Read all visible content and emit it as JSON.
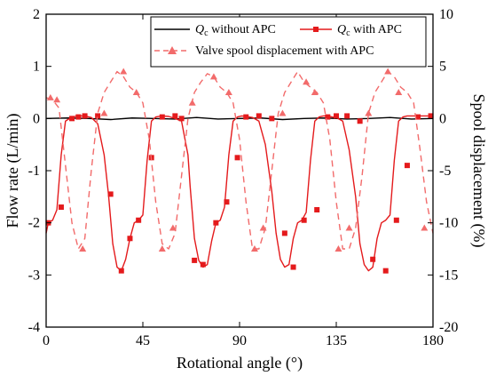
{
  "chart_data": {
    "type": "line",
    "title": "",
    "xlabel": "Rotational angle (°)",
    "ylabel_left": "Flow rate (L/min)",
    "ylabel_right": "Spool displacement (%)",
    "xlim": [
      0,
      180
    ],
    "ylim_left": [
      -4,
      2
    ],
    "ylim_right": [
      -20,
      10
    ],
    "x_ticks": [
      0,
      45,
      90,
      135,
      180
    ],
    "y_left_ticks": [
      -4,
      -3,
      -2,
      -1,
      0,
      1,
      2
    ],
    "y_right_ticks": [
      -20,
      -15,
      -10,
      -5,
      0,
      5,
      10
    ],
    "grid": false,
    "legend_position": "top-right",
    "series": [
      {
        "name": "Q_c without APC",
        "legend_main": "Q",
        "legend_sub": "c",
        "legend_rest": " without APC",
        "axis": "left",
        "color": "#000000",
        "style": "solid",
        "marker": "none",
        "x": [
          0,
          10,
          20,
          30,
          40,
          50,
          60,
          70,
          80,
          90,
          100,
          110,
          120,
          130,
          140,
          150,
          160,
          170,
          180
        ],
        "y": [
          0,
          0.01,
          0.0,
          -0.02,
          0.01,
          0.0,
          -0.01,
          0.02,
          -0.01,
          0.0,
          0.01,
          -0.02,
          0.0,
          0.01,
          -0.01,
          0.0,
          0.02,
          -0.01,
          0.0
        ]
      },
      {
        "name": "Q_c with APC",
        "legend_main": "Q",
        "legend_sub": "c",
        "legend_rest": " with APC",
        "axis": "left",
        "color": "#e41a1c",
        "style": "solid",
        "marker": "square",
        "x": [
          0,
          1,
          3,
          5,
          7,
          9,
          12,
          15,
          18,
          21,
          24,
          27,
          29,
          31,
          33,
          35,
          37,
          39,
          41,
          43,
          45,
          47,
          49,
          51,
          54,
          57,
          60,
          63,
          66,
          67,
          69,
          71,
          73,
          75,
          77,
          79,
          81,
          83,
          85,
          87,
          89,
          91,
          93,
          96,
          99,
          102,
          105,
          107,
          109,
          111,
          113,
          115,
          117,
          119,
          121,
          123,
          125,
          127,
          129,
          131,
          133,
          135,
          138,
          141,
          144,
          146,
          148,
          150,
          152,
          154,
          156,
          158,
          160,
          162,
          164,
          166,
          168,
          170,
          173,
          176,
          180
        ],
        "y": [
          -2.2,
          -2.0,
          -1.95,
          -1.75,
          -0.7,
          -0.05,
          0.03,
          0.05,
          0.05,
          0.02,
          -0.1,
          -0.7,
          -1.45,
          -2.4,
          -2.85,
          -2.92,
          -2.7,
          -2.3,
          -2.0,
          -1.95,
          -1.85,
          -0.8,
          -0.05,
          0.03,
          0.05,
          0.04,
          0.0,
          -0.05,
          -0.7,
          -1.3,
          -2.3,
          -2.72,
          -2.85,
          -2.8,
          -2.35,
          -2.0,
          -1.95,
          -1.7,
          -0.7,
          -0.05,
          0.03,
          0.05,
          0.04,
          0.02,
          -0.05,
          -0.5,
          -1.4,
          -2.2,
          -2.7,
          -2.85,
          -2.8,
          -2.3,
          -2.0,
          -1.95,
          -1.8,
          -0.8,
          -0.05,
          0.03,
          0.05,
          0.05,
          0.03,
          0.02,
          -0.05,
          -0.6,
          -1.5,
          -2.4,
          -2.8,
          -2.92,
          -2.85,
          -2.3,
          -2.0,
          -1.95,
          -1.85,
          -0.8,
          -0.05,
          0.03,
          0.05,
          0.05,
          0.05,
          0.05,
          0.05
        ],
        "marker_x": [
          1,
          7,
          12,
          15,
          18,
          24,
          30,
          35,
          39,
          43,
          49,
          54,
          60,
          63,
          69,
          73,
          79,
          84,
          89,
          93,
          99,
          105,
          111,
          115,
          120,
          126,
          131,
          135,
          140,
          146,
          152,
          158,
          163,
          168,
          173,
          179
        ],
        "marker_y": [
          -2.0,
          -1.7,
          0.0,
          0.03,
          0.05,
          0.05,
          -1.45,
          -2.92,
          -2.3,
          -1.95,
          -0.75,
          0.03,
          0.05,
          0.0,
          -2.72,
          -2.8,
          -2.0,
          -1.6,
          -0.75,
          0.03,
          0.05,
          0.0,
          -2.2,
          -2.85,
          -1.95,
          -1.75,
          0.03,
          0.05,
          0.05,
          -0.05,
          -2.7,
          -2.92,
          -1.95,
          -0.9,
          0.03,
          0.05
        ]
      },
      {
        "name": "Valve spool displacement with APC",
        "legend_main": "Valve spool displacement with APC",
        "legend_sub": "",
        "legend_rest": "",
        "axis": "right",
        "color": "#f26b6b",
        "style": "dashed",
        "marker": "triangle",
        "x": [
          0,
          3,
          6,
          9,
          12,
          15,
          18,
          21,
          24,
          27,
          30,
          33,
          36,
          39,
          42,
          45,
          48,
          51,
          54,
          57,
          60,
          63,
          66,
          69,
          72,
          75,
          78,
          81,
          84,
          87,
          90,
          93,
          96,
          99,
          102,
          105,
          108,
          111,
          114,
          117,
          120,
          123,
          126,
          129,
          132,
          135,
          138,
          141,
          144,
          147,
          150,
          153,
          156,
          159,
          162,
          165,
          168,
          171,
          174,
          177,
          180
        ],
        "y": [
          2.0,
          1.8,
          1.0,
          -4.5,
          -10.0,
          -12.5,
          -11.5,
          -5.0,
          0.5,
          2.5,
          3.5,
          4.5,
          4.0,
          3.0,
          2.5,
          1.5,
          -2.0,
          -8.0,
          -12.0,
          -12.5,
          -11.0,
          -5.5,
          0.0,
          2.5,
          3.5,
          4.3,
          4.0,
          3.0,
          2.5,
          1.5,
          -2.0,
          -8.0,
          -12.5,
          -12.5,
          -10.5,
          -5.0,
          0.5,
          2.5,
          3.5,
          4.5,
          3.5,
          3.0,
          2.5,
          1.5,
          -2.0,
          -8.0,
          -12.5,
          -12.5,
          -10.5,
          -5.5,
          0.5,
          2.5,
          3.5,
          4.5,
          4.0,
          3.0,
          2.5,
          1.5,
          -3.0,
          -8.0,
          -11.0
        ],
        "marker_x": [
          2,
          5,
          17,
          27,
          36,
          42,
          54,
          59,
          68,
          78,
          85,
          97,
          101,
          110,
          121,
          125,
          136,
          141,
          150,
          159,
          164,
          176
        ],
        "marker_y": [
          2.0,
          1.8,
          -12.5,
          0.5,
          4.5,
          2.5,
          -12.5,
          -10.5,
          1.5,
          4.0,
          2.5,
          -12.5,
          -10.5,
          0.5,
          3.5,
          2.5,
          -12.5,
          -10.5,
          0.5,
          4.5,
          2.5,
          -10.5
        ]
      }
    ]
  }
}
